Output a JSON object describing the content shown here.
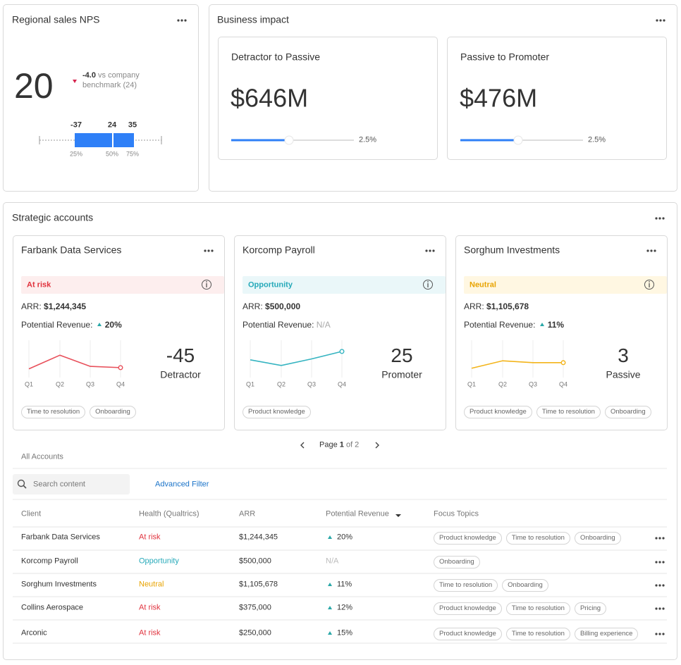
{
  "nps": {
    "title": "Regional sales NPS",
    "score": "20",
    "delta": "-4.0",
    "delta_note": "vs company benchmark (24)",
    "delta_color": "#d6244e",
    "box_labels": [
      "-37",
      "24",
      "35"
    ],
    "percentiles": [
      "25%",
      "50%",
      "75%"
    ],
    "box_color": "#2f80f7"
  },
  "impact": {
    "title": "Business impact",
    "cards": [
      {
        "title": "Detractor to Passive",
        "value": "$646M",
        "pct": "2.5%"
      },
      {
        "title": "Passive to Promoter",
        "value": "$476M",
        "pct": "2.5%"
      }
    ]
  },
  "strategic": {
    "title": "Strategic accounts",
    "quarters": [
      "Q1",
      "Q2",
      "Q3",
      "Q4"
    ],
    "arr_label": "ARR:",
    "potential_label": "Potential Revenue:",
    "cards": [
      {
        "name": "Farbank Data Services",
        "status": "At risk",
        "status_color": "#e0313c",
        "status_bg": "#fdeeee",
        "arr": "$1,244,345",
        "potential": "20%",
        "direction": "up",
        "trend": [
          -53,
          -42,
          -51,
          -52
        ],
        "trend_ylim": [
          -60,
          -30
        ],
        "line_color": "#e8505b",
        "score": "-45",
        "category": "Detractor",
        "topics": [
          "Time to resolution",
          "Onboarding"
        ]
      },
      {
        "name": "Korcomp Payroll",
        "status": "Opportunity",
        "status_color": "#25a9b9",
        "status_bg": "#eaf7f9",
        "arr": "$500,000",
        "potential": "N/A",
        "direction": "none",
        "trend": [
          19,
          13,
          20,
          28
        ],
        "trend_ylim": [
          0,
          40
        ],
        "line_color": "#35b4c1",
        "score": "25",
        "category": "Promoter",
        "topics": [
          "Product knowledge"
        ]
      },
      {
        "name": "Sorghum Investments",
        "status": "Neutral",
        "status_color": "#e8a300",
        "status_bg": "#fff7e2",
        "arr": "$1,105,678",
        "potential": "11%",
        "direction": "up",
        "trend": [
          -5,
          -1,
          -2,
          -2
        ],
        "trend_ylim": [
          -10,
          10
        ],
        "line_color": "#f3b41a",
        "score": "3",
        "category": "Passive",
        "topics": [
          "Product knowledge",
          "Time to resolution",
          "Onboarding"
        ]
      }
    ]
  },
  "pager": {
    "label": "Page",
    "current": "1",
    "total": "of 2"
  },
  "table": {
    "label": "All Accounts",
    "search_placeholder": "Search content",
    "filter": "Advanced Filter",
    "columns": [
      "Client",
      "Health (Qualtrics)",
      "ARR",
      "Potential Revenue",
      "Focus Topics"
    ],
    "rows": [
      {
        "client": "Farbank Data Services",
        "health": "At risk",
        "health_color": "#e0313c",
        "arr": "$1,244,345",
        "potential": "20%",
        "direction": "up",
        "topics": [
          "Product knowledge",
          "Time to resolution",
          "Onboarding"
        ]
      },
      {
        "client": "Korcomp Payroll",
        "health": "Opportunity",
        "health_color": "#25a9b9",
        "arr": "$500,000",
        "potential": "N/A",
        "direction": "none",
        "topics": [
          "Onboarding"
        ]
      },
      {
        "client": "Sorghum Investments",
        "health": "Neutral",
        "health_color": "#e8a300",
        "arr": "$1,105,678",
        "potential": "11%",
        "direction": "up",
        "topics": [
          "Time to resolution",
          "Onboarding"
        ]
      },
      {
        "client": "Collins Aerospace",
        "health": "At risk",
        "health_color": "#e0313c",
        "arr": "$375,000",
        "potential": "12%",
        "direction": "up",
        "topics": [
          "Product knowledge",
          "Time to resolution",
          "Pricing"
        ]
      },
      {
        "client": "Arconic",
        "health": "At risk",
        "health_color": "#e0313c",
        "arr": "$250,000",
        "potential": "15%",
        "direction": "up",
        "topics": [
          "Product knowledge",
          "Time to resolution",
          "Billing experience"
        ]
      }
    ]
  }
}
